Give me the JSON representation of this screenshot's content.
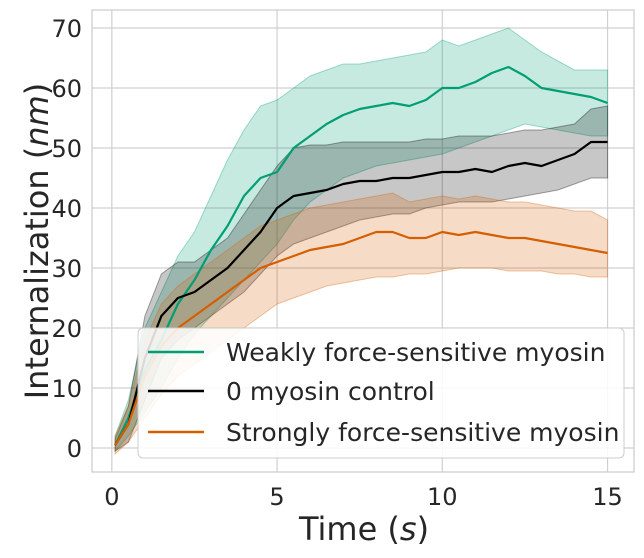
{
  "chart_data": {
    "type": "line",
    "title": "",
    "xlabel": "Time",
    "xlabel_var": "s",
    "ylabel": "Internalization",
    "ylabel_var": "nm",
    "xlim": [
      -0.6,
      15.8
    ],
    "ylim": [
      -4,
      73
    ],
    "xticks": [
      0,
      5,
      10,
      15
    ],
    "yticks": [
      0,
      10,
      20,
      30,
      40,
      50,
      60,
      70
    ],
    "grid": true,
    "legend_position": "lower-right",
    "series": [
      {
        "name": "Weakly force-sensitive myosin",
        "color": "#009e73",
        "x": [
          0.1,
          0.5,
          1.0,
          1.5,
          2.0,
          2.5,
          3.0,
          3.5,
          4.0,
          4.5,
          5.0,
          5.5,
          6.0,
          6.5,
          7.0,
          7.5,
          8.0,
          8.5,
          9.0,
          9.5,
          10.0,
          10.5,
          11.0,
          11.5,
          12.0,
          12.5,
          13.0,
          13.5,
          14.0,
          14.5,
          15.0
        ],
        "mean": [
          0.5,
          5,
          13,
          18,
          24,
          28,
          33,
          37,
          42,
          45,
          46,
          50,
          52,
          54,
          55.5,
          56.5,
          57,
          57.5,
          57,
          58,
          60,
          60,
          61,
          62.5,
          63.5,
          62,
          60,
          59.5,
          59,
          58.5,
          57.5
        ],
        "lower": [
          -0.5,
          2,
          6,
          10,
          15,
          19,
          22,
          25,
          28,
          31,
          34,
          38,
          41,
          43,
          45,
          46,
          47,
          47.5,
          48,
          48.5,
          49,
          50,
          51,
          52,
          53,
          54,
          53.5,
          53,
          52.5,
          52,
          52
        ],
        "upper": [
          2,
          8,
          20,
          26,
          32,
          36,
          42,
          48,
          53,
          57,
          58,
          60,
          62,
          63,
          64,
          64,
          64.5,
          65,
          65.5,
          66,
          68,
          67,
          68,
          69,
          70,
          68,
          66,
          64.5,
          63,
          63,
          63
        ]
      },
      {
        "name": "0 myosin control",
        "color": "#000000",
        "x": [
          0.1,
          0.5,
          1.0,
          1.5,
          2.0,
          2.5,
          3.0,
          3.5,
          4.0,
          4.5,
          5.0,
          5.5,
          6.0,
          6.5,
          7.0,
          7.5,
          8.0,
          8.5,
          9.0,
          9.5,
          10.0,
          10.5,
          11.0,
          11.5,
          12.0,
          12.5,
          13.0,
          13.5,
          14.0,
          14.5,
          15.0
        ],
        "mean": [
          0.5,
          4,
          15,
          22,
          25,
          26,
          28,
          30,
          33,
          36,
          40,
          42,
          42.5,
          43,
          44,
          44.5,
          44.5,
          45,
          45,
          45.5,
          46,
          46,
          46.5,
          46,
          47,
          47.5,
          47,
          48,
          49,
          51,
          51
        ],
        "lower": [
          -0.5,
          1,
          8,
          15,
          18,
          20,
          22,
          24,
          26,
          29,
          32,
          34,
          35,
          36,
          37,
          38,
          38.5,
          39,
          39,
          40,
          40.5,
          41,
          41,
          41,
          41.5,
          42,
          42.5,
          43,
          44,
          45,
          45
        ],
        "upper": [
          1.5,
          7,
          22,
          29,
          31,
          31,
          33,
          35,
          39,
          43,
          47,
          50,
          50.5,
          50.5,
          51,
          51,
          51,
          51,
          51,
          51.5,
          51.5,
          52,
          52,
          52,
          52.5,
          53,
          53,
          53.5,
          54,
          56.5,
          57
        ]
      },
      {
        "name": "Strongly force-sensitive myosin",
        "color": "#d55e00",
        "x": [
          0.1,
          0.5,
          1.0,
          1.5,
          2.0,
          2.5,
          3.0,
          3.5,
          4.0,
          4.5,
          5.0,
          5.5,
          6.0,
          6.5,
          7.0,
          7.5,
          8.0,
          8.5,
          9.0,
          9.5,
          10.0,
          10.5,
          11.0,
          11.5,
          12.0,
          12.5,
          13.0,
          13.5,
          14.0,
          14.5,
          15.0
        ],
        "mean": [
          0.5,
          4,
          12,
          17,
          20,
          22,
          24,
          26,
          28,
          30,
          31,
          32,
          33,
          33.5,
          34,
          35,
          36,
          36,
          35,
          35,
          36,
          35.5,
          36,
          35.5,
          35,
          35,
          34.5,
          34,
          33.5,
          33,
          32.5
        ],
        "lower": [
          -1,
          1,
          5,
          9,
          12,
          14,
          16,
          18,
          20,
          22,
          24,
          25,
          26,
          27,
          27.5,
          28,
          28.5,
          28.5,
          29,
          29,
          29.5,
          30,
          30,
          30,
          29.5,
          29.5,
          29.5,
          29,
          29,
          28.5,
          28.5
        ],
        "upper": [
          2,
          7,
          18,
          24,
          27,
          29,
          31,
          33,
          35,
          37,
          38,
          39,
          40,
          40.5,
          41,
          41.5,
          42,
          42.5,
          41,
          41.5,
          42,
          41.5,
          42,
          41.5,
          41,
          41,
          40.5,
          40,
          39.5,
          39.5,
          38
        ]
      }
    ]
  }
}
